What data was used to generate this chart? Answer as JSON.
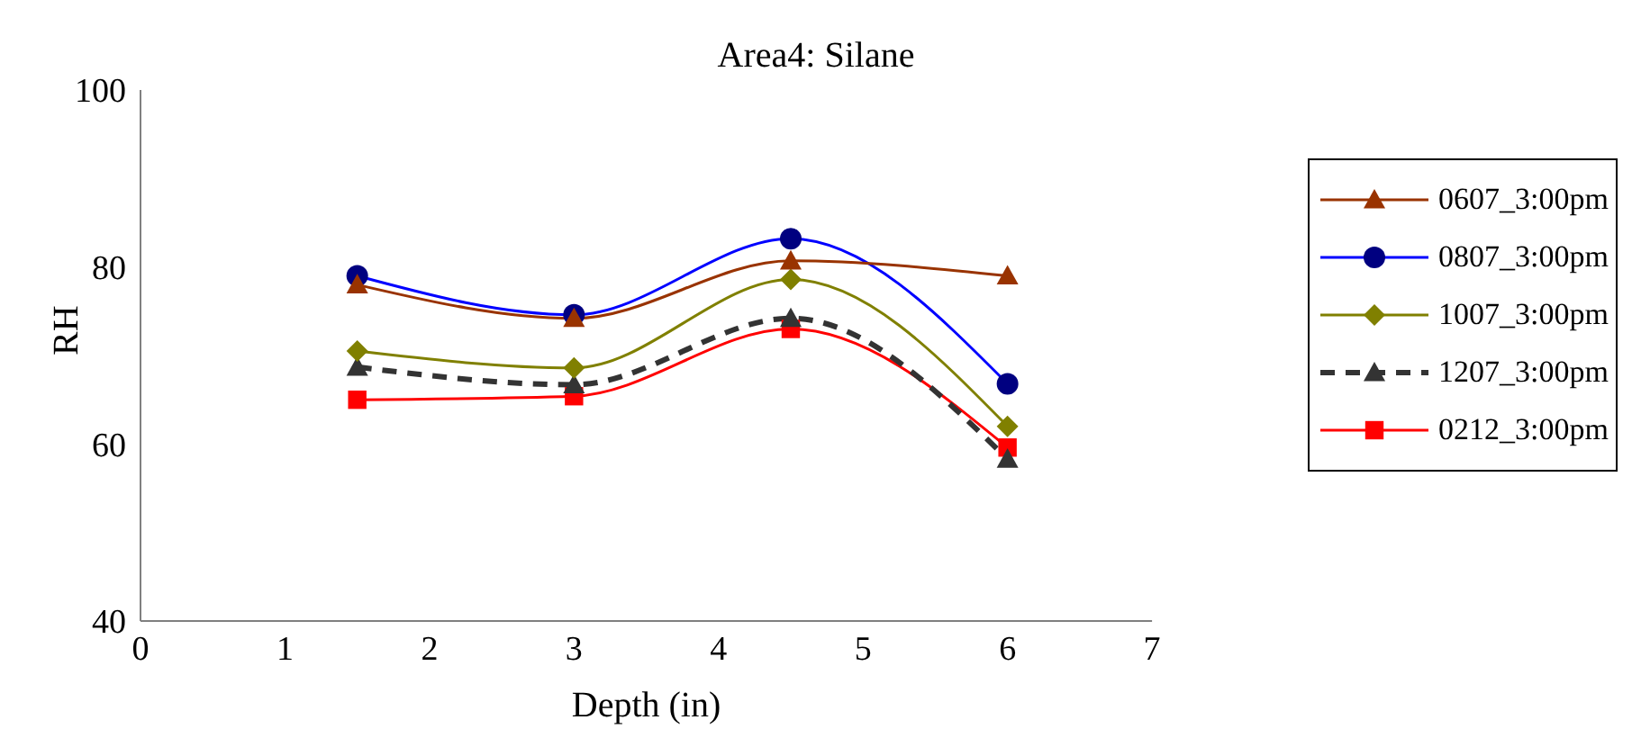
{
  "chart_data": {
    "type": "line",
    "title": "Area4: Silane",
    "xlabel": "Depth (in)",
    "ylabel": "RH",
    "x": [
      1.5,
      3,
      4.5,
      6
    ],
    "xlim": [
      0,
      7
    ],
    "xticks": [
      0,
      1,
      2,
      3,
      4,
      5,
      6,
      7
    ],
    "ylim": [
      40,
      100
    ],
    "yticks": [
      40,
      60,
      80,
      100
    ],
    "grid": false,
    "legend": "right",
    "series": [
      {
        "name": "0607_3:00pm",
        "color": "#993300",
        "marker": "triangle",
        "line_style": "solid",
        "values": [
          78.0,
          74.2,
          80.7,
          79.0
        ]
      },
      {
        "name": "0807_3:00pm",
        "color": "#0000ff",
        "marker": "circle",
        "line_style": "solid",
        "values": [
          79.0,
          74.6,
          83.2,
          66.8
        ]
      },
      {
        "name": "1007_3:00pm",
        "color": "#808000",
        "marker": "diamond",
        "line_style": "solid",
        "values": [
          70.5,
          68.6,
          78.6,
          62.0
        ]
      },
      {
        "name": "1207_3:00pm",
        "color": "#333333",
        "marker": "triangle",
        "line_style": "dashed",
        "values": [
          68.7,
          66.7,
          74.2,
          58.3
        ]
      },
      {
        "name": "0212_3:00pm",
        "color": "#ff0000",
        "marker": "square",
        "line_style": "solid",
        "values": [
          65.0,
          65.4,
          73.0,
          59.6
        ]
      }
    ]
  }
}
